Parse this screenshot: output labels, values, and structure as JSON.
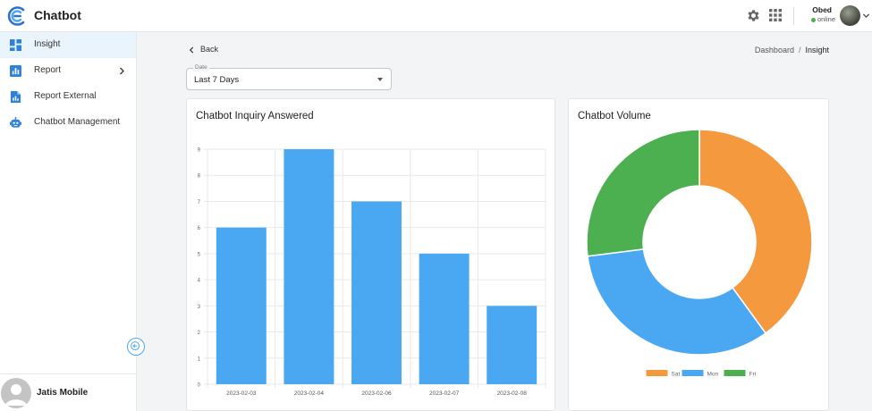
{
  "app": {
    "title": "Chatbot"
  },
  "user": {
    "name": "Obed",
    "status": "online"
  },
  "sidebar": {
    "items": [
      {
        "label": "Insight",
        "icon": "dashboard-icon",
        "active": true
      },
      {
        "label": "Report",
        "icon": "bar-chart-icon",
        "has_submenu": true
      },
      {
        "label": "Report External",
        "icon": "document-icon"
      },
      {
        "label": "Chatbot Management",
        "icon": "robot-icon"
      }
    ],
    "footer": {
      "org_name": "Jatis Mobile"
    }
  },
  "main": {
    "back_label": "Back",
    "breadcrumb": {
      "parent": "Dashboard",
      "separator": "/",
      "current": "Insight"
    },
    "date_filter": {
      "label": "Date",
      "value": "Last 7 Days"
    }
  },
  "colors": {
    "accent": "#4aa8f3",
    "bar": "#4aa8f3",
    "sat": "#f4993e",
    "mon": "#4aa8f3",
    "fri": "#4caf50"
  },
  "chart_data": [
    {
      "type": "bar",
      "title": "Chatbot Inquiry Answered",
      "categories": [
        "2023-02-03",
        "2023-02-04",
        "2023-02-06",
        "2023-02-07",
        "2023-02-08"
      ],
      "values": [
        6,
        9,
        7,
        5,
        3
      ],
      "ylim": [
        0,
        9
      ],
      "yticks": [
        "0",
        "1",
        "2",
        "3",
        "4",
        "5",
        "6",
        "7",
        "8",
        "9"
      ],
      "grid": true,
      "color": "#4aa8f3"
    },
    {
      "type": "pie",
      "title": "Chatbot Volume",
      "labels": [
        "Sat",
        "Mon",
        "Fri"
      ],
      "values": [
        40,
        33,
        27
      ],
      "colors": [
        "#f4993e",
        "#4aa8f3",
        "#4caf50"
      ],
      "legend": "bottom"
    }
  ]
}
